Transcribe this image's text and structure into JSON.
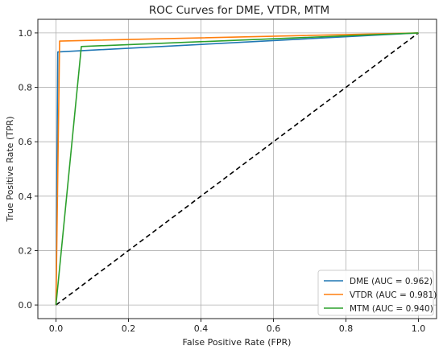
{
  "chart_data": {
    "type": "line",
    "title": "ROC Curves for DME, VTDR, MTM",
    "xlabel": "False Positive Rate (FPR)",
    "ylabel": "True Positive Rate (TPR)",
    "xlim": [
      -0.05,
      1.05
    ],
    "ylim": [
      -0.05,
      1.05
    ],
    "xticks": [
      "0.0",
      "0.2",
      "0.4",
      "0.6",
      "0.8",
      "1.0"
    ],
    "yticks": [
      "0.0",
      "0.2",
      "0.4",
      "0.6",
      "0.8",
      "1.0"
    ],
    "grid": true,
    "legend_position": "lower-right",
    "series": [
      {
        "name": "DME (AUC = 0.962)",
        "color": "#1f77b4",
        "x": [
          0.0,
          0.005,
          1.0
        ],
        "y": [
          0.0,
          0.93,
          1.0
        ]
      },
      {
        "name": "VTDR (AUC = 0.981)",
        "color": "#ff7f0e",
        "x": [
          0.0,
          0.01,
          1.0
        ],
        "y": [
          0.0,
          0.97,
          1.0
        ]
      },
      {
        "name": "MTM (AUC = 0.940)",
        "color": "#2ca02c",
        "x": [
          0.0,
          0.07,
          1.0
        ],
        "y": [
          0.0,
          0.95,
          1.0
        ]
      }
    ],
    "reference_line": {
      "x": [
        0.0,
        1.0
      ],
      "y": [
        0.0,
        1.0
      ],
      "color": "#000000",
      "style": "dashed"
    }
  }
}
